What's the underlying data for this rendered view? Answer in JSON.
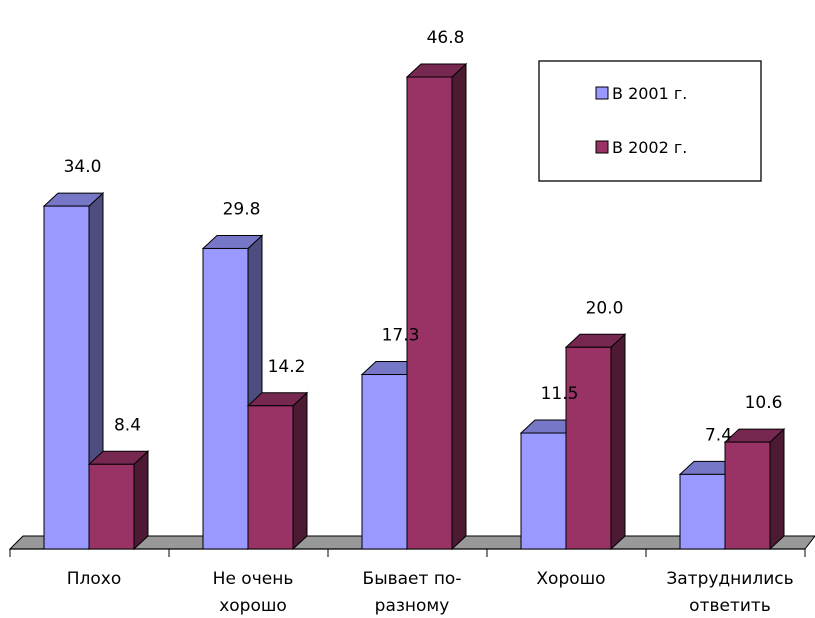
{
  "chart_data": {
    "type": "bar",
    "style": "3d-clustered",
    "categories": [
      [
        "Плохо"
      ],
      [
        "Не очень",
        "хорошо"
      ],
      [
        "Бывает по-",
        "разному"
      ],
      [
        "Хорошо"
      ],
      [
        "Затруднились",
        "ответить"
      ]
    ],
    "series": [
      {
        "name": "В 2001 г.",
        "values": [
          34.0,
          29.8,
          17.3,
          11.5,
          7.4
        ],
        "color": "#9999ff"
      },
      {
        "name": "В 2002 г.",
        "values": [
          8.4,
          14.2,
          46.8,
          20.0,
          10.6
        ],
        "color": "#993366"
      }
    ],
    "value_labels": [
      [
        "34.0",
        "29.8",
        "17.3",
        "11.5",
        "7.4"
      ],
      [
        "8.4",
        "14.2",
        "46.8",
        "20.0",
        "10.6"
      ]
    ],
    "legend_position": "top-right",
    "floor_color": "#999999",
    "grid": false
  }
}
